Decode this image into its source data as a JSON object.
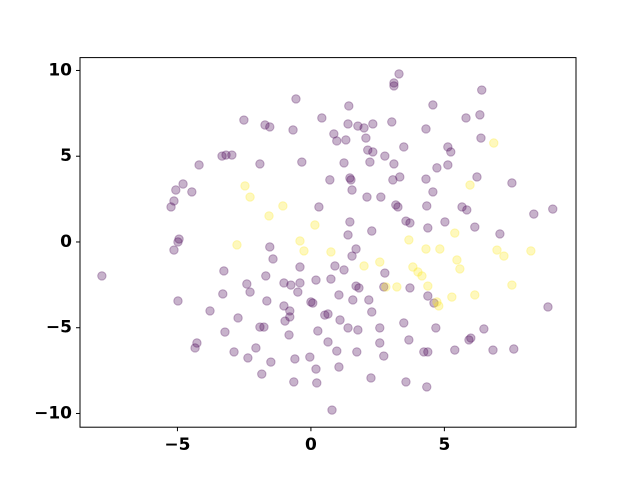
{
  "chart_data": {
    "type": "scatter",
    "xlim": [
      -8.65,
      9.93
    ],
    "ylim": [
      -10.8,
      10.75
    ],
    "xticks": [
      {
        "value": -5,
        "label": "−5"
      },
      0,
      5
    ],
    "yticks": [
      {
        "value": -10,
        "label": "−10"
      },
      {
        "value": -5,
        "label": "−5"
      },
      0,
      5,
      10
    ],
    "opacity": 0.3,
    "series": [
      {
        "color": "#440154",
        "x": [
          -7.83,
          -0.56,
          3.3,
          3.11,
          3.11,
          1.42,
          4.57,
          6.4,
          -2.51,
          0.41,
          -1.72,
          -1.54,
          -0.67,
          0.86,
          1.39,
          1.76,
          1.99,
          2.32,
          3.03,
          4.31,
          5.81,
          6.33,
          6.37,
          -3.18,
          -2.96,
          -3.33,
          -4.19,
          -4.79,
          -5.06,
          -4.46,
          -5.24,
          -5.13,
          -1.91,
          -0.34,
          0.97,
          1.31,
          2.06,
          2.13,
          2.32,
          3.48,
          2.77,
          3.11,
          2.21,
          1.24,
          1.46,
          1.5,
          0.71,
          5.13,
          5.24,
          4.72,
          4.31,
          4.57,
          6.22,
          7.53,
          3.33,
          3.07,
          5.13,
          1.54,
          2.1,
          2.62,
          3.18,
          3.26,
          0.3,
          3.56,
          3.71,
          4.34,
          5.02,
          5.66,
          5.84,
          6.14,
          7.08,
          8.35,
          9.06,
          1.46,
          1.39,
          -4.94,
          -4.98,
          -5.13,
          1.69,
          2.28,
          4.38,
          -1.54,
          -1.42,
          1.54,
          0.9,
          1.24,
          -0.41,
          0.19,
          0.75,
          -3.26,
          -1.69,
          -0.41,
          -0.75,
          -0.49,
          -1.01,
          -2.4,
          -2.28,
          -3.3,
          -1.65,
          0.0,
          0.07,
          1.05,
          1.69,
          1.8,
          2.77,
          2.73,
          -4.98,
          -3.78,
          -2.73,
          -1.01,
          -0.79,
          -0.79,
          -0.97,
          0.52,
          0.64,
          1.57,
          2.17,
          3.71,
          4.38,
          1.09,
          2.58,
          3.48,
          -3.22,
          -1.91,
          -1.76,
          -0.82,
          0.26,
          1.39,
          1.76,
          2.28,
          4.68,
          6.48,
          5.99,
          8.88,
          4.61,
          -4.27,
          -4.34,
          -2.88,
          -2.06,
          -2.36,
          -1.84,
          -0.6,
          -0.04,
          0.19,
          0.22,
          0.64,
          0.97,
          1.72,
          2.58,
          2.73,
          3.67,
          4.38,
          4.23,
          5.39,
          5.92,
          6.82,
          7.6,
          1.05,
          2.25,
          3.56,
          4.34,
          -0.64,
          0.79,
          -1.5
        ],
        "values": [
          -1.98,
          8.34,
          9.8,
          9.27,
          9.1,
          7.93,
          7.99,
          8.86,
          7.11,
          7.23,
          6.82,
          6.71,
          6.53,
          6.3,
          6.88,
          6.76,
          6.65,
          6.88,
          7.0,
          6.59,
          7.23,
          7.41,
          6.06,
          5.07,
          5.07,
          5.01,
          4.49,
          3.38,
          3.03,
          2.92,
          2.04,
          2.39,
          4.55,
          4.66,
          5.89,
          5.95,
          6.06,
          5.36,
          5.25,
          5.54,
          5.01,
          4.55,
          4.66,
          4.61,
          3.73,
          3.62,
          3.62,
          5.54,
          5.25,
          4.32,
          3.67,
          2.92,
          3.79,
          3.44,
          3.79,
          3.62,
          4.49,
          3.03,
          2.62,
          2.62,
          2.16,
          2.04,
          2.04,
          1.22,
          1.11,
          2.1,
          1.17,
          2.04,
          1.87,
          0.87,
          0.47,
          1.63,
          1.92,
          1.17,
          0.41,
          0.17,
          0.0,
          -0.47,
          -0.41,
          0.64,
          0.82,
          -0.29,
          -0.99,
          -0.82,
          -1.4,
          -1.63,
          -1.46,
          -2.22,
          -2.16,
          -1.69,
          -1.98,
          -2.39,
          -2.51,
          -2.92,
          -2.39,
          -2.45,
          -2.92,
          -3.03,
          -3.44,
          -3.5,
          -3.56,
          -3.09,
          -2.57,
          -2.68,
          -1.81,
          -2.62,
          -3.44,
          -4.02,
          -4.43,
          -3.73,
          -4.02,
          -4.37,
          -4.61,
          -4.26,
          -4.2,
          -3.38,
          -3.38,
          -2.68,
          -3.15,
          -4.55,
          -5.01,
          -4.72,
          -5.25,
          -4.96,
          -4.96,
          -5.42,
          -5.19,
          -5.01,
          -5.13,
          -4.08,
          -5.01,
          -5.07,
          -5.6,
          -3.79,
          -3.56,
          -5.89,
          -6.18,
          -6.41,
          -6.18,
          -6.76,
          -7.7,
          -6.82,
          -6.71,
          -7.41,
          -8.22,
          -5.83,
          -6.36,
          -6.41,
          -5.89,
          -6.65,
          -5.71,
          -6.41,
          -6.41,
          -6.3,
          -5.71,
          -6.3,
          -6.24,
          -7.29,
          -7.93,
          -8.16,
          -8.45,
          -8.16,
          -9.8,
          -7.0
        ]
      },
      {
        "color": "#fde725",
        "x": [
          -2.47,
          -2.28,
          -1.57,
          -1.05,
          -2.77,
          -0.41,
          0.15,
          0.75,
          -0.26,
          1.99,
          2.58,
          2.81,
          3.22,
          3.67,
          3.82,
          4.01,
          4.16,
          4.31,
          4.83,
          5.39,
          5.47,
          5.58,
          4.72,
          4.79,
          5.28,
          6.14,
          5.96,
          6.85,
          6.97,
          7.23,
          7.53,
          8.24,
          4.38
        ],
        "values": [
          3.27,
          2.62,
          1.52,
          2.1,
          -0.17,
          0.06,
          0.99,
          -0.58,
          -0.52,
          -1.4,
          -1.17,
          -2.62,
          -2.62,
          0.12,
          -1.46,
          -1.75,
          -1.98,
          -0.41,
          -0.41,
          0.52,
          -1.05,
          -1.57,
          -3.5,
          -3.73,
          -3.21,
          -3.09,
          3.32,
          5.77,
          -0.47,
          -0.82,
          -2.51,
          -0.52,
          -2.57
        ]
      }
    ]
  }
}
